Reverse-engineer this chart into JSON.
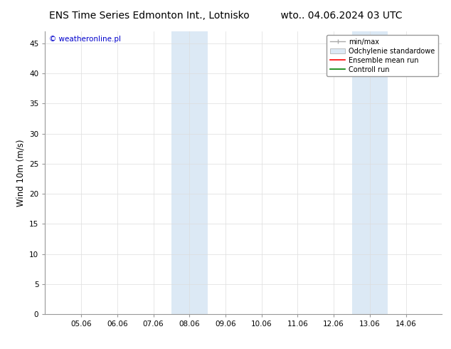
{
  "title_left": "ENS Time Series Edmonton Int., Lotnisko",
  "title_right": "wto.. 04.06.2024 03 UTC",
  "ylabel": "Wind 10m (m/s)",
  "watermark": "© weatheronline.pl",
  "watermark_color": "#0000cc",
  "x_tick_labels": [
    "05.06",
    "06.06",
    "07.06",
    "08.06",
    "09.06",
    "10.06",
    "11.06",
    "12.06",
    "13.06",
    "14.06"
  ],
  "x_tick_positions": [
    1,
    2,
    3,
    4,
    5,
    6,
    7,
    8,
    9,
    10
  ],
  "xlim": [
    0,
    11
  ],
  "ylim": [
    0,
    47
  ],
  "yticks": [
    0,
    5,
    10,
    15,
    20,
    25,
    30,
    35,
    40,
    45
  ],
  "shaded_regions": [
    {
      "x_start": 3.5,
      "x_end": 4.5,
      "color": "#dce9f5"
    },
    {
      "x_start": 8.5,
      "x_end": 9.5,
      "color": "#dce9f5"
    }
  ],
  "legend_entries": [
    {
      "label": "min/max",
      "color": "#aaaaaa",
      "lw": 1.2,
      "style": "errorbar"
    },
    {
      "label": "Odchylenie standardowe",
      "color": "#dce9f5",
      "lw": 8,
      "style": "bar"
    },
    {
      "label": "Ensemble mean run",
      "color": "#ff0000",
      "lw": 1.2,
      "style": "line"
    },
    {
      "label": "Controll run",
      "color": "#008000",
      "lw": 1.2,
      "style": "line"
    }
  ],
  "bg_color": "#ffffff",
  "plot_bg_color": "#ffffff",
  "border_color": "#999999",
  "title_fontsize": 10,
  "tick_fontsize": 7.5,
  "ylabel_fontsize": 8.5
}
